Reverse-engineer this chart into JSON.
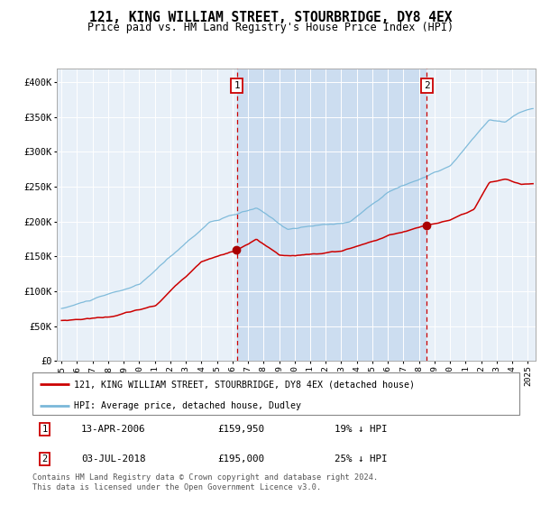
{
  "title": "121, KING WILLIAM STREET, STOURBRIDGE, DY8 4EX",
  "subtitle": "Price paid vs. HM Land Registry's House Price Index (HPI)",
  "legend_line1": "121, KING WILLIAM STREET, STOURBRIDGE, DY8 4EX (detached house)",
  "legend_line2": "HPI: Average price, detached house, Dudley",
  "sale1_date": "13-APR-2006",
  "sale1_price": 159950,
  "sale1_pct": "19% ↓ HPI",
  "sale2_date": "03-JUL-2018",
  "sale2_price": 195000,
  "sale2_pct": "25% ↓ HPI",
  "footnote": "Contains HM Land Registry data © Crown copyright and database right 2024.\nThis data is licensed under the Open Government Licence v3.0.",
  "hpi_color": "#7ab8d9",
  "price_color": "#cc0000",
  "sale_marker_color": "#aa0000",
  "vline_color": "#cc0000",
  "chart_bg": "#e8f0f8",
  "span_bg": "#ccddf0",
  "sale1_x": 2006.28,
  "sale2_x": 2018.5,
  "ylim": [
    0,
    420000
  ],
  "xlim_start": 1994.7,
  "xlim_end": 2025.5
}
